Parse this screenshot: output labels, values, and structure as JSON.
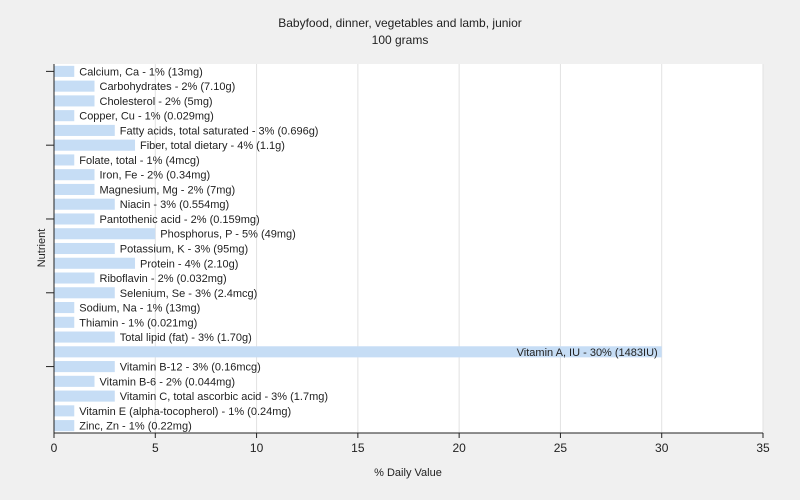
{
  "chart_data": {
    "type": "bar",
    "orientation": "horizontal",
    "title": "Babyfood, dinner, vegetables and lamb, junior",
    "subtitle": "100 grams",
    "xlabel": "% Daily Value",
    "ylabel": "Nutrient",
    "xlim": [
      0,
      35
    ],
    "xticks": [
      0,
      5,
      10,
      15,
      20,
      25,
      30,
      35
    ],
    "grid": "vertical",
    "bar_color": "#c6ddf5",
    "categories": [
      "Calcium, Ca",
      "Carbohydrates",
      "Cholesterol",
      "Copper, Cu",
      "Fatty acids, total saturated",
      "Fiber, total dietary",
      "Folate, total",
      "Iron, Fe",
      "Magnesium, Mg",
      "Niacin",
      "Pantothenic acid",
      "Phosphorus, P",
      "Potassium, K",
      "Protein",
      "Riboflavin",
      "Selenium, Se",
      "Sodium, Na",
      "Thiamin",
      "Total lipid (fat)",
      "Vitamin A, IU",
      "Vitamin B-12",
      "Vitamin B-6",
      "Vitamin C, total ascorbic acid",
      "Vitamin E (alpha-tocopherol)",
      "Zinc, Zn"
    ],
    "values": [
      1,
      2,
      2,
      1,
      3,
      4,
      1,
      2,
      2,
      3,
      2,
      5,
      3,
      4,
      2,
      3,
      1,
      1,
      3,
      30,
      3,
      2,
      3,
      1,
      1
    ],
    "labels": [
      "Calcium, Ca - 1% (13mg)",
      "Carbohydrates - 2% (7.10g)",
      "Cholesterol - 2% (5mg)",
      "Copper, Cu - 1% (0.029mg)",
      "Fatty acids, total saturated - 3% (0.696g)",
      "Fiber, total dietary - 4% (1.1g)",
      "Folate, total - 1% (4mcg)",
      "Iron, Fe - 2% (0.34mg)",
      "Magnesium, Mg - 2% (7mg)",
      "Niacin - 3% (0.554mg)",
      "Pantothenic acid - 2% (0.159mg)",
      "Phosphorus, P - 5% (49mg)",
      "Potassium, K - 3% (95mg)",
      "Protein - 4% (2.10g)",
      "Riboflavin - 2% (0.032mg)",
      "Selenium, Se - 3% (2.4mcg)",
      "Sodium, Na - 1% (13mg)",
      "Thiamin - 1% (0.021mg)",
      "Total lipid (fat) - 3% (1.70g)",
      "Vitamin A, IU - 30% (1483IU)",
      "Vitamin B-12 - 3% (0.16mcg)",
      "Vitamin B-6 - 2% (0.044mg)",
      "Vitamin C, total ascorbic acid - 3% (1.7mg)",
      "Vitamin E (alpha-tocopherol) - 1% (0.24mg)",
      "Zinc, Zn - 1% (0.22mg)"
    ]
  }
}
